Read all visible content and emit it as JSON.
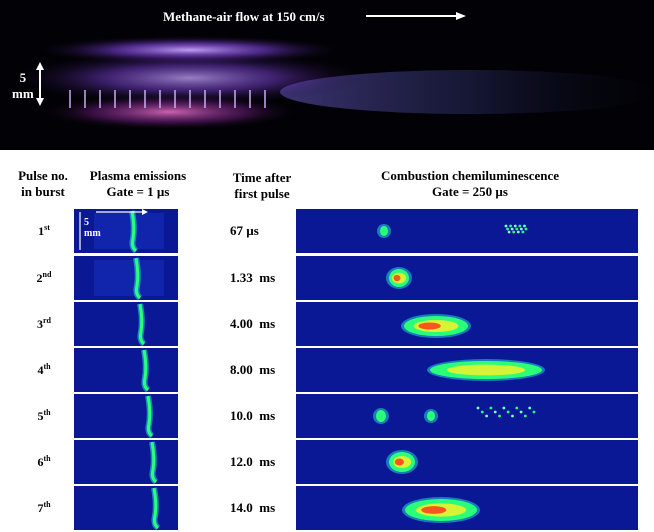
{
  "top": {
    "flow_label": "Methane-air flow at 150 cm/s",
    "scale_value": "5",
    "scale_unit": "mm"
  },
  "headers": {
    "pulse_line1": "Pulse no.",
    "pulse_line2": "in burst",
    "plasma_line1": "Plasma emissions",
    "plasma_line2": "Gate = 1 µs",
    "time_line1": "Time after",
    "time_line2": "first pulse",
    "comb_line1": "Combustion chemiluminescence",
    "comb_line2": "Gate = 250 µs"
  },
  "plasma_inset": {
    "value": "5",
    "unit": "mm"
  },
  "pulses": [
    {
      "num": "1",
      "suffix": "st"
    },
    {
      "num": "2",
      "suffix": "nd"
    },
    {
      "num": "3",
      "suffix": "rd"
    },
    {
      "num": "4",
      "suffix": "th"
    },
    {
      "num": "5",
      "suffix": "th"
    },
    {
      "num": "6",
      "suffix": "th"
    },
    {
      "num": "7",
      "suffix": "th"
    }
  ],
  "times": [
    "67 µs",
    "1.33  ms",
    "4.00  ms",
    "8.00  ms",
    "10.0  ms",
    "12.0  ms",
    "14.0  ms"
  ],
  "colors": {
    "panel_bg": "#0a1896",
    "plasma_glow": "#a87cff",
    "hot": "#ff3a1a",
    "warm": "#f4f22a",
    "mid": "#2bff7a"
  }
}
